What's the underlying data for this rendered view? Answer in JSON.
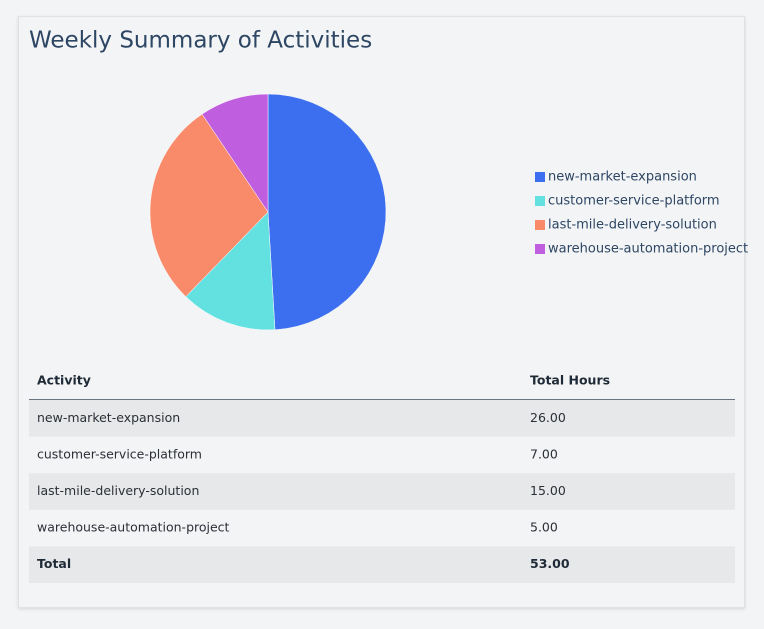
{
  "title": "Weekly Summary of Activities",
  "chart_data": {
    "type": "pie",
    "categories": [
      "new-market-expansion",
      "customer-service-platform",
      "last-mile-delivery-solution",
      "warehouse-automation-project"
    ],
    "values": [
      26,
      7,
      15,
      5
    ],
    "colors": [
      "#3b6ff0",
      "#63e0e0",
      "#f98b6b",
      "#c05ee0"
    ],
    "legend": "right"
  },
  "table": {
    "header": [
      "Activity",
      "Total Hours"
    ],
    "rows": [
      [
        "new-market-expansion",
        "26.00"
      ],
      [
        "customer-service-platform",
        "7.00"
      ],
      [
        "last-mile-delivery-solution",
        "15.00"
      ],
      [
        "warehouse-automation-project",
        "5.00"
      ]
    ],
    "total": [
      "Total",
      "53.00"
    ]
  }
}
